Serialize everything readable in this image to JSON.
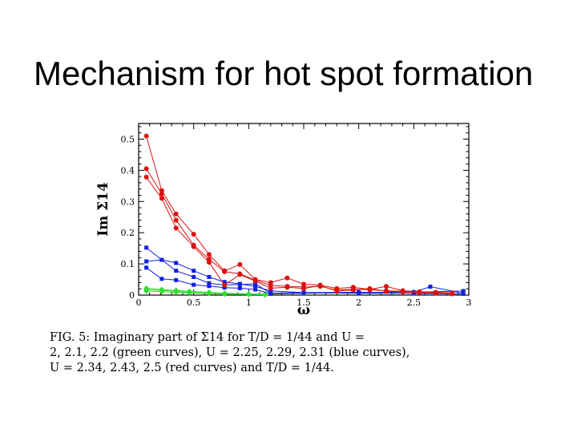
{
  "slide": {
    "title": "Mechanism for hot spot formation"
  },
  "caption": {
    "lines": [
      "FIG. 5: Imaginary part of Σ14 for T/D = 1/44 and U =",
      "2, 2.1, 2.2 (green curves), U = 2.25, 2.29, 2.31 (blue curves),",
      "U = 2.34, 2.43, 2.5 (red curves) and T/D = 1/44."
    ]
  },
  "colors": {
    "green": "#33dd33",
    "blue": "#1122dd",
    "red": "#dd1111"
  },
  "chart_data": {
    "type": "line",
    "title": "",
    "xlabel": "ω",
    "ylabel": "Im Σ14",
    "xlim": [
      0,
      3
    ],
    "ylim": [
      0,
      0.55
    ],
    "xticks": [
      0,
      0.5,
      1,
      1.5,
      2,
      2.5,
      3
    ],
    "xtick_labels": [
      "0",
      "0.5",
      "1",
      "1.5",
      "2",
      "2.5",
      "3"
    ],
    "yticks": [
      0,
      0.1,
      0.2,
      0.3,
      0.4,
      0.5
    ],
    "ytick_labels": [
      "0",
      "0.1",
      "0.2",
      "0.3",
      "0.4",
      "0.5"
    ],
    "grid": false,
    "series": [
      {
        "group": "green",
        "color": "#33dd33",
        "marker": "diamond",
        "x": [
          0.07,
          0.21,
          0.34,
          0.46,
          0.64,
          0.78,
          1.0,
          1.15
        ],
        "y": [
          0.022,
          0.018,
          0.015,
          0.012,
          0.009,
          0.006,
          0.004,
          0.003
        ]
      },
      {
        "group": "green",
        "color": "#33dd33",
        "marker": "diamond",
        "x": [
          0.07,
          0.21,
          0.34,
          0.46,
          0.64,
          0.78,
          1.0,
          1.15
        ],
        "y": [
          0.018,
          0.015,
          0.012,
          0.009,
          0.006,
          0.004,
          0.003,
          0.002
        ]
      },
      {
        "group": "green",
        "color": "#33dd33",
        "marker": "diamond",
        "x": [
          0.07,
          0.21,
          0.34,
          0.46,
          0.64,
          0.78,
          1.0,
          1.15
        ],
        "y": [
          0.013,
          0.011,
          0.009,
          0.007,
          0.005,
          0.003,
          0.002,
          0.001
        ]
      },
      {
        "group": "blue",
        "color": "#1122dd",
        "marker": "square",
        "x": [
          0.07,
          0.21,
          0.34,
          0.5,
          0.64,
          0.78,
          0.92,
          1.06,
          1.2,
          1.5,
          2.0,
          2.5,
          2.95
        ],
        "y": [
          0.152,
          0.113,
          0.103,
          0.078,
          0.058,
          0.042,
          0.036,
          0.028,
          0.013,
          0.008,
          0.006,
          0.005,
          0.004
        ]
      },
      {
        "group": "blue",
        "color": "#1122dd",
        "marker": "square",
        "x": [
          0.07,
          0.21,
          0.34,
          0.5,
          0.64,
          0.78,
          0.92,
          1.06,
          1.2,
          1.5,
          2.0,
          2.5,
          2.95
        ],
        "y": [
          0.108,
          0.113,
          0.078,
          0.058,
          0.038,
          0.032,
          0.034,
          0.036,
          0.006,
          0.008,
          0.009,
          0.009,
          0.013
        ]
      },
      {
        "group": "blue",
        "color": "#1122dd",
        "marker": "square",
        "x": [
          0.07,
          0.21,
          0.34,
          0.5,
          0.64,
          0.78,
          0.92,
          1.06,
          1.2,
          1.5,
          2.0,
          2.5,
          2.65,
          2.95
        ],
        "y": [
          0.088,
          0.052,
          0.048,
          0.033,
          0.029,
          0.024,
          0.022,
          0.018,
          0.004,
          0.006,
          0.008,
          0.009,
          0.027,
          0.006
        ]
      },
      {
        "group": "red",
        "color": "#dd1111",
        "marker": "circle",
        "x": [
          0.07,
          0.21,
          0.34,
          0.5,
          0.64,
          0.78,
          0.92,
          1.06,
          1.2,
          1.35,
          1.5,
          1.65,
          1.8,
          1.95,
          2.1,
          2.25,
          2.4,
          2.55,
          2.7,
          2.85
        ],
        "y": [
          0.51,
          0.335,
          0.26,
          0.195,
          0.13,
          0.078,
          0.098,
          0.05,
          0.04,
          0.055,
          0.035,
          0.032,
          0.021,
          0.025,
          0.018,
          0.028,
          0.014,
          0.011,
          0.009,
          0.007
        ]
      },
      {
        "group": "red",
        "color": "#dd1111",
        "marker": "circle",
        "x": [
          0.07,
          0.21,
          0.34,
          0.5,
          0.64,
          0.78,
          0.92,
          1.06,
          1.2,
          1.35,
          1.5,
          1.65,
          1.8,
          1.95,
          2.1,
          2.25,
          2.4,
          2.55,
          2.7,
          2.85
        ],
        "y": [
          0.405,
          0.325,
          0.24,
          0.16,
          0.115,
          0.075,
          0.068,
          0.048,
          0.031,
          0.028,
          0.026,
          0.028,
          0.016,
          0.019,
          0.017,
          0.014,
          0.012,
          0.009,
          0.007,
          0.005
        ]
      },
      {
        "group": "red",
        "color": "#dd1111",
        "marker": "circle",
        "x": [
          0.07,
          0.21,
          0.34,
          0.5,
          0.64,
          0.78,
          0.92,
          1.06,
          1.2,
          1.35,
          1.5,
          1.65,
          1.8,
          1.95,
          2.1,
          2.25,
          2.4,
          2.55,
          2.7,
          2.85
        ],
        "y": [
          0.378,
          0.31,
          0.215,
          0.155,
          0.105,
          0.032,
          0.066,
          0.045,
          0.022,
          0.025,
          0.021,
          0.03,
          0.013,
          0.016,
          0.021,
          0.012,
          0.01,
          0.008,
          0.006,
          0.004
        ]
      }
    ]
  }
}
